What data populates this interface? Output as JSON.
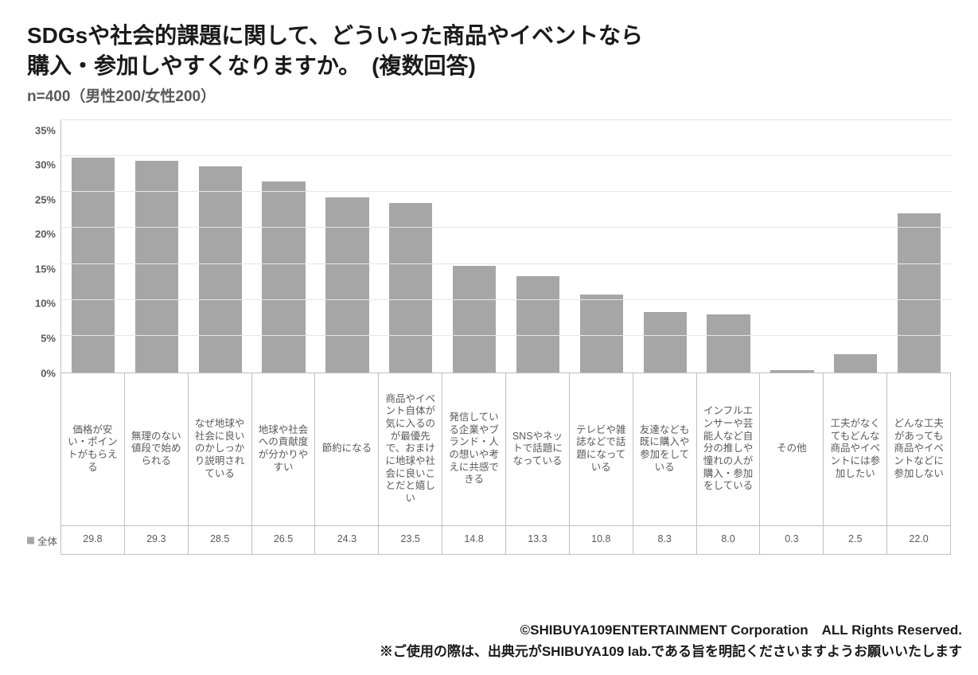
{
  "title_line1": "SDGsや社会的課題に関して、どういった商品やイベントなら",
  "title_line2": "購入・参加しやすくなりますか。　(複数回答)",
  "subtitle": "n=400（男性200/女性200）",
  "chart": {
    "type": "bar",
    "y_ticks": [
      "35%",
      "30%",
      "25%",
      "20%",
      "15%",
      "10%",
      "5%",
      "0%"
    ],
    "y_max": 35,
    "y_step": 5,
    "bar_color": "#a6a6a6",
    "grid_color": "#e6e6e6",
    "axis_color": "#bfbfbf",
    "background_color": "#ffffff",
    "legend_label": "全体",
    "categories": [
      "価格が安い・ポイントがもらえる",
      "無理のない値段で始められる",
      "なぜ地球や社会に良いのかしっかり説明されている",
      "地球や社会への貢献度が分かりやすい",
      "節約になる",
      "商品やイベント自体が気に入るのが最優先で、おまけに地球や社会に良いことだと嬉しい",
      "発信している企業やブランド・人の想いや考えに共感できる",
      "SNSやネットで話題になっている",
      "テレビや雑誌などで話題になっている",
      "友達なども既に購入や参加をしている",
      "インフルエンサーや芸能人など自分の推しや憧れの人が購入・参加をしている",
      "その他",
      "工夫がなくてもどんな商品やイベントには参加したい",
      "どんな工夫があっても商品やイベントなどに参加しない"
    ],
    "values": [
      29.8,
      29.3,
      28.5,
      26.5,
      24.3,
      23.5,
      14.8,
      13.3,
      10.8,
      8.3,
      8.0,
      0.3,
      2.5,
      22.0
    ],
    "value_labels": [
      "29.8",
      "29.3",
      "28.5",
      "26.5",
      "24.3",
      "23.5",
      "14.8",
      "13.3",
      "10.8",
      "8.3",
      "8.0",
      "0.3",
      "2.5",
      "22.0"
    ]
  },
  "footer_line1": "©SHIBUYA109ENTERTAINMENT Corporation　ALL Rights Reserved.",
  "footer_line2": "※ご使用の際は、出典元がSHIBUYA109 lab.である旨を明記くださいますようお願いいたします"
}
